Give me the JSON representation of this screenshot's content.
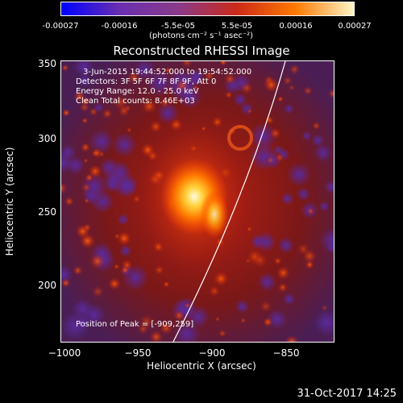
{
  "colorbar": {
    "ticks": [
      "-0.00027",
      "-0.00016",
      "-5.5e-05",
      "5.5e-05",
      "0.00016",
      "0.00027"
    ],
    "unit_label": "(photons cm⁻² s⁻¹ asec⁻²)",
    "colors": [
      "#0000ff",
      "#6a2fb0",
      "#8a3a8a",
      "#cc2a18",
      "#ff7a00",
      "#fff5c8"
    ]
  },
  "title": "Reconstructed RHESSI Image",
  "info": {
    "time": "3-Jun-2015 19:44:52.000 to 19:54:52.000",
    "detectors": "Detectors: 3F 5F 6F 7F 8F 9F, Att 0",
    "energy": "Energy Range: 12.0 - 25.0 keV",
    "clean": "Clean    Total counts: 8.46E+03"
  },
  "peak": "Position of Peak = [-909,259]",
  "axes": {
    "xlabel": "Heliocentric X (arcsec)",
    "ylabel": "Heliocentric Y (arcsec)",
    "xticks": [
      "−1000",
      "−950",
      "−900",
      "−850"
    ],
    "yticks": [
      "350",
      "300",
      "250",
      "200"
    ]
  },
  "timestamp": "31-Oct-2017 14:25"
}
